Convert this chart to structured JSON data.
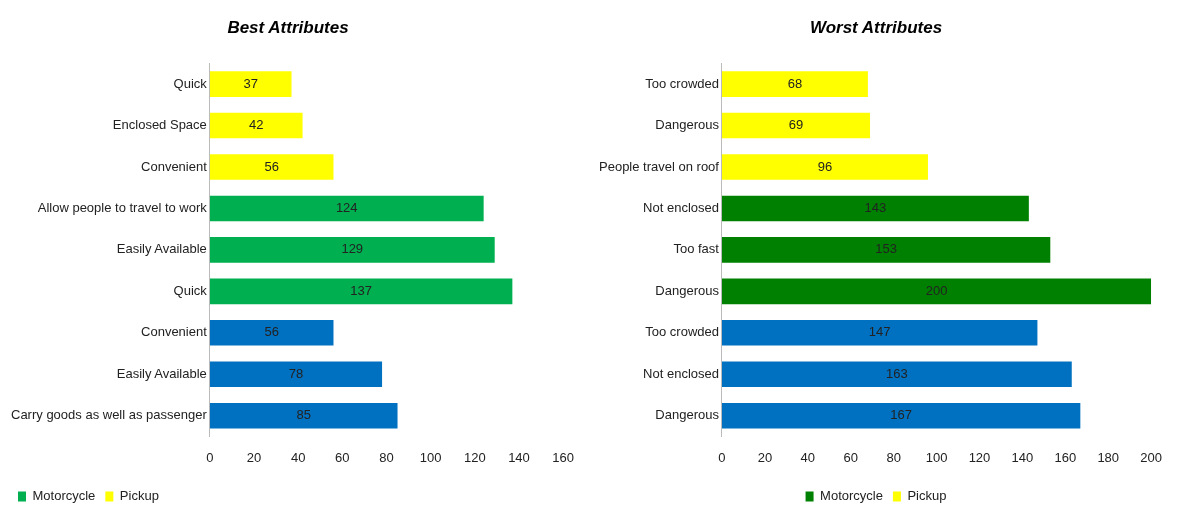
{
  "chart_data": [
    {
      "type": "bar",
      "title": "Best Attributes",
      "orientation": "horizontal",
      "categories": [
        "Quick",
        "Enclosed Space",
        "Convenient",
        "Allow people to travel to work",
        "Easily Available",
        "Quick",
        "Convenient",
        "Easily Available",
        "Carry goods as well as passenger"
      ],
      "series": [
        {
          "color": "#0070c0",
          "values": [
            null,
            null,
            null,
            null,
            null,
            null,
            56,
            78,
            85
          ]
        },
        {
          "name": "Motorcycle",
          "color": "#00b050",
          "values": [
            null,
            null,
            null,
            124,
            129,
            137,
            null,
            null,
            null
          ]
        },
        {
          "name": "Pickup",
          "color": "#ffff00",
          "values": [
            37,
            42,
            56,
            null,
            null,
            null,
            null,
            null,
            null
          ]
        }
      ],
      "xlim": [
        0,
        160
      ],
      "xticks": [
        0,
        20,
        40,
        60,
        80,
        100,
        120,
        140,
        160
      ],
      "data_labels": true,
      "grid": false,
      "legend": "bottom left"
    },
    {
      "type": "bar",
      "title": "Worst Attributes",
      "orientation": "horizontal",
      "categories": [
        "Too crowded",
        "Dangerous",
        "People travel on roof",
        "Not enclosed",
        "Too fast",
        "Dangerous",
        "Too crowded",
        "Not enclosed",
        "Dangerous"
      ],
      "series": [
        {
          "color": "#0070c0",
          "values": [
            null,
            null,
            null,
            null,
            null,
            null,
            147,
            163,
            167
          ]
        },
        {
          "name": "Motorcycle",
          "color": "#008000",
          "values": [
            null,
            null,
            null,
            143,
            153,
            200,
            null,
            null,
            null
          ]
        },
        {
          "name": "Pickup",
          "color": "#ffff00",
          "values": [
            68,
            69,
            96,
            null,
            null,
            null,
            null,
            null,
            null
          ]
        }
      ],
      "xlim": [
        0,
        200
      ],
      "xticks": [
        0,
        20,
        40,
        60,
        80,
        100,
        120,
        140,
        160,
        180,
        200
      ],
      "data_labels": true,
      "grid": false,
      "legend": "bottom"
    }
  ]
}
